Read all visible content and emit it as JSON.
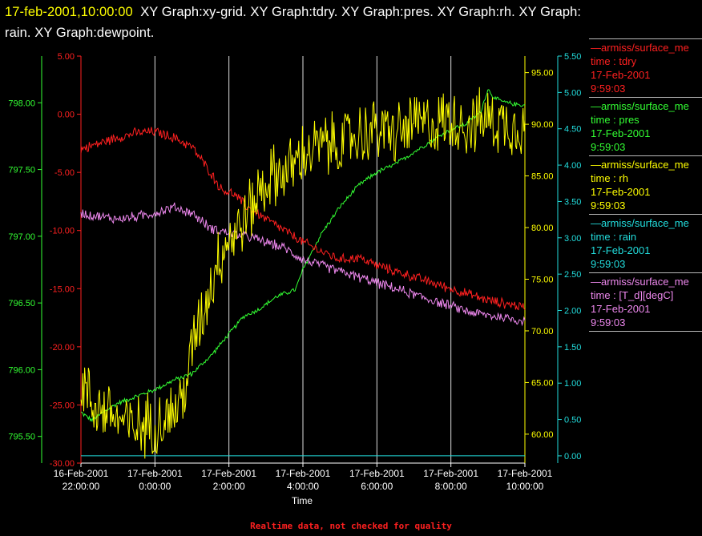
{
  "title": {
    "timestamp": "17-feb-2001,10:00:00",
    "line1_text": "XY Graph:xy-grid.  XY Graph:tdry.  XY Graph:pres.  XY Graph:rh.  XY Graph:",
    "line2_text": "rain.  XY Graph:dewpoint."
  },
  "footer": "Realtime data, not checked for quality",
  "legend": [
    {
      "name": "—armiss/surface_me",
      "var": "time : tdry",
      "date": "17-Feb-2001",
      "time": "9:59:03",
      "color": "#ff2020"
    },
    {
      "name": "—armiss/surface_me",
      "var": "time : pres",
      "date": "17-Feb-2001",
      "time": "9:59:03",
      "color": "#33ff33"
    },
    {
      "name": "—armiss/surface_me",
      "var": "time : rh",
      "date": "17-Feb-2001",
      "time": "9:59:03",
      "color": "#ffff00"
    },
    {
      "name": "—armiss/surface_me",
      "var": "time : rain",
      "date": "17-Feb-2001",
      "time": "9:59:03",
      "color": "#22dddd"
    },
    {
      "name": "—armiss/surface_me",
      "var": "time : [T_d][degC]",
      "date": "17-Feb-2001",
      "time": "9:59:03",
      "color": "#ee88ee"
    }
  ],
  "chart_data": {
    "type": "line",
    "xlabel": "Time",
    "x_ticks": [
      {
        "date": "16-Feb-2001",
        "time": "22:00:00"
      },
      {
        "date": "17-Feb-2001",
        "time": "0:00:00"
      },
      {
        "date": "17-Feb-2001",
        "time": "2:00:00"
      },
      {
        "date": "17-Feb-2001",
        "time": "4:00:00"
      },
      {
        "date": "17-Feb-2001",
        "time": "6:00:00"
      },
      {
        "date": "17-Feb-2001",
        "time": "8:00:00"
      },
      {
        "date": "17-Feb-2001",
        "time": "10:00:00"
      }
    ],
    "xlim_hours": [
      22,
      34
    ],
    "grid": "vertical lines at each x tick",
    "axes": [
      {
        "id": "pres",
        "side": "left-outer",
        "color": "#33ff33",
        "ylim": [
          795.3,
          798.35
        ],
        "ticks": [
          "795.50",
          "796.00",
          "796.50",
          "797.00",
          "797.50",
          "798.00"
        ]
      },
      {
        "id": "tdry",
        "side": "left-inner",
        "color": "#ff2020",
        "ylim": [
          -30,
          5
        ],
        "ticks": [
          "-30.00",
          "-25.00",
          "-20.00",
          "-15.00",
          "-10.00",
          "-5.00",
          "0.00",
          "5.00"
        ]
      },
      {
        "id": "rh",
        "side": "right-inner",
        "color": "#ffff00",
        "ylim": [
          57.2,
          96.6
        ],
        "ticks": [
          "60.00",
          "65.00",
          "70.00",
          "75.00",
          "80.00",
          "85.00",
          "90.00",
          "95.00"
        ]
      },
      {
        "id": "rain",
        "side": "right-outer",
        "color": "#22dddd",
        "ylim": [
          -0.1,
          5.5
        ],
        "ticks": [
          "0.00",
          "0.50",
          "1.00",
          "1.50",
          "2.00",
          "2.50",
          "3.00",
          "3.50",
          "4.00",
          "4.50",
          "5.00",
          "5.50"
        ]
      }
    ],
    "series": [
      {
        "name": "tdry",
        "axis": "tdry",
        "color": "#ff2020",
        "noise": 0.25,
        "x": [
          22,
          22.5,
          23,
          23.5,
          24,
          24.5,
          25.0,
          25.5,
          25.8,
          26.1,
          26.5,
          27,
          27.5,
          28,
          28.5,
          29,
          29.5,
          30,
          30.5,
          31,
          31.5,
          32,
          32.5,
          33,
          33.5,
          34
        ],
        "y": [
          -3.0,
          -2.5,
          -2.0,
          -1.6,
          -1.5,
          -2.0,
          -2.8,
          -5.0,
          -6.5,
          -6.8,
          -8.0,
          -9.0,
          -10.0,
          -11.0,
          -11.8,
          -12.5,
          -12.3,
          -13.0,
          -13.5,
          -14.0,
          -14.5,
          -15.0,
          -15.5,
          -16.0,
          -16.3,
          -16.6
        ]
      },
      {
        "name": "pres",
        "axis": "pres",
        "color": "#33ff33",
        "noise": 0.01,
        "x": [
          22,
          22.3,
          22.6,
          23.0,
          23.5,
          24.0,
          24.5,
          25.0,
          25.3,
          25.5,
          25.8,
          26.1,
          26.4,
          26.8,
          27.3,
          27.8,
          28.0,
          28.5,
          29.0,
          29.5,
          30.0,
          30.5,
          31.0,
          31.5,
          32.0,
          32.4,
          32.8,
          33.0,
          33.2,
          33.5,
          34
        ],
        "y": [
          795.68,
          795.62,
          795.68,
          795.75,
          795.8,
          795.85,
          795.92,
          795.97,
          796.05,
          796.1,
          796.2,
          796.3,
          796.4,
          796.45,
          796.55,
          796.6,
          796.75,
          797.02,
          797.22,
          797.38,
          797.48,
          797.54,
          797.63,
          797.72,
          797.8,
          797.84,
          797.93,
          798.1,
          798.03,
          798.0,
          797.98
        ]
      },
      {
        "name": "rh",
        "axis": "rh",
        "color": "#ffff00",
        "noise": 1.8,
        "x": [
          22,
          22.3,
          22.6,
          23.0,
          23.4,
          23.8,
          24.2,
          24.5,
          24.8,
          25.1,
          25.4,
          25.7,
          26.0,
          26.3,
          26.6,
          26.9,
          27.2,
          27.6,
          28.0,
          28.5,
          29.0,
          29.5,
          30.0,
          30.5,
          31.0,
          31.5,
          32.0,
          32.5,
          33.0,
          33.5,
          34
        ],
        "y": [
          65.0,
          63.0,
          62.5,
          61.5,
          60.5,
          61.0,
          61.5,
          62.0,
          64.0,
          70.0,
          73.0,
          77.0,
          79.0,
          80.0,
          82.0,
          84.0,
          85.0,
          85.5,
          87.0,
          88.0,
          88.0,
          89.0,
          89.5,
          89.0,
          90.0,
          90.0,
          90.5,
          90.0,
          90.5,
          90.0,
          90.0
        ]
      },
      {
        "name": "rain",
        "axis": "rain",
        "color": "#22dddd",
        "noise": 0,
        "x": [
          22,
          34
        ],
        "y": [
          0.0,
          0.0
        ]
      },
      {
        "name": "[T_d][degC]",
        "axis": "tdry",
        "color": "#ee88ee",
        "noise": 0.25,
        "x": [
          22,
          22.5,
          23,
          23.5,
          24,
          24.5,
          25.0,
          25.5,
          26.0,
          26.5,
          27,
          27.5,
          28,
          28.5,
          29,
          29.5,
          30,
          30.5,
          31,
          31.5,
          32,
          32.5,
          33,
          33.5,
          34
        ],
        "y": [
          -8.5,
          -8.8,
          -9.0,
          -8.8,
          -8.5,
          -8.0,
          -8.5,
          -9.8,
          -10.2,
          -10.5,
          -11.0,
          -11.5,
          -12.5,
          -13.0,
          -13.5,
          -14.0,
          -14.5,
          -15.0,
          -15.5,
          -16.0,
          -16.5,
          -17.0,
          -17.3,
          -17.5,
          -17.8
        ]
      }
    ]
  }
}
